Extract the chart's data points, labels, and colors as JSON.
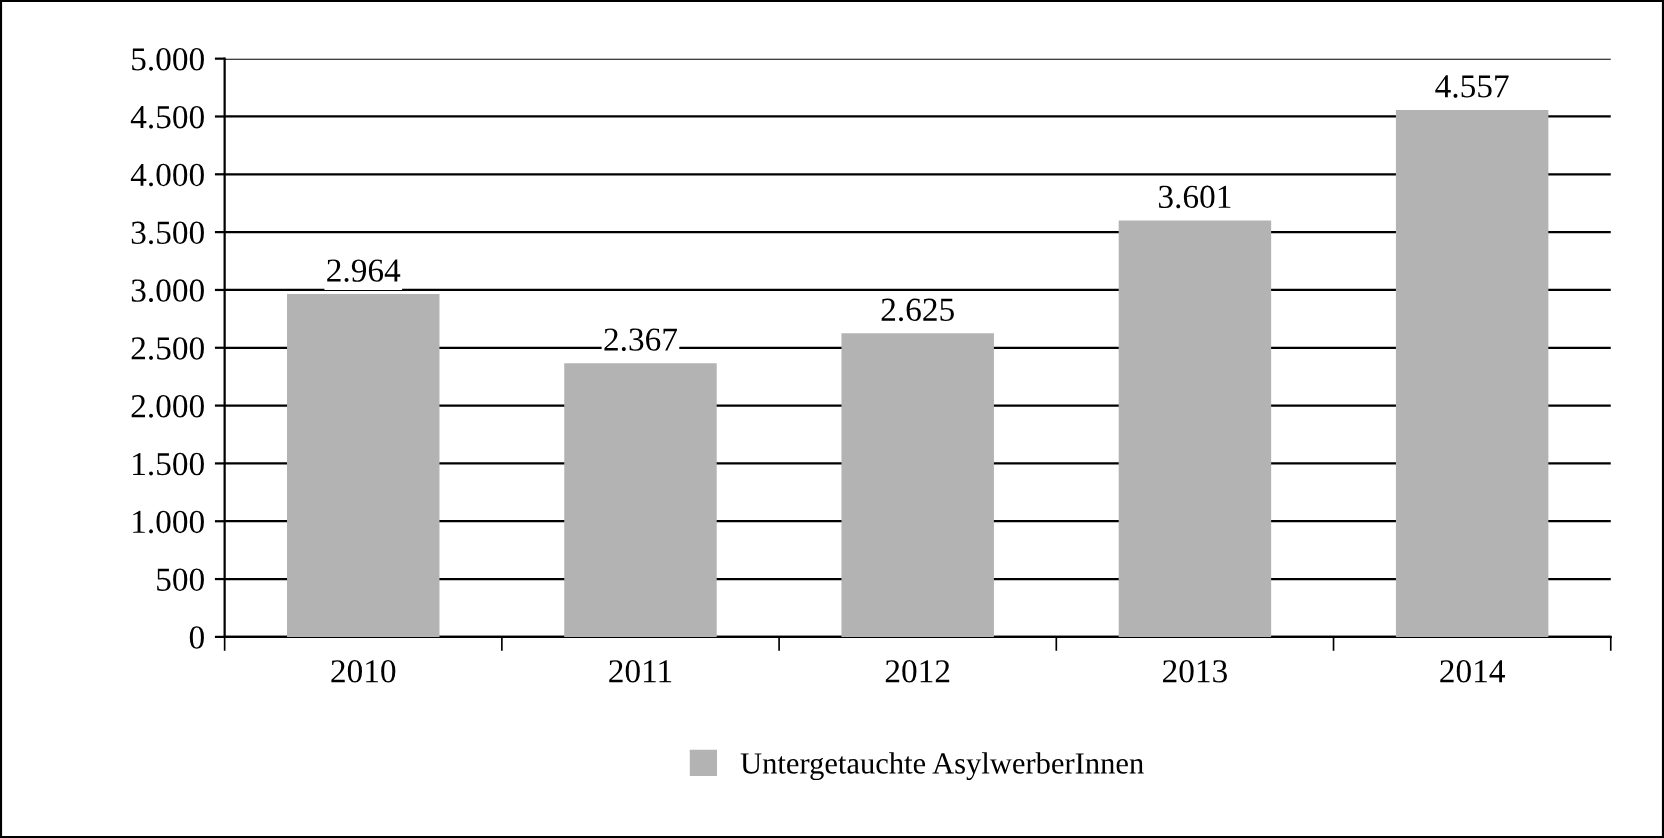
{
  "chart_data": {
    "type": "bar",
    "categories": [
      "2010",
      "2011",
      "2012",
      "2013",
      "2014"
    ],
    "series": [
      {
        "name": "Untergetauchte AsylwerberInnen",
        "color": "#b3b3b3",
        "values": [
          2964,
          2367,
          2625,
          3601,
          4557
        ],
        "value_labels": [
          "2.964",
          "2.367",
          "2.625",
          "3.601",
          "4.557"
        ]
      }
    ],
    "ylim": [
      0,
      5000
    ],
    "yticks": [
      0,
      500,
      {
        "value": 1000,
        "label": "1.000"
      },
      {
        "value": 1500,
        "label": "1.500"
      },
      {
        "value": 2000,
        "label": "2.000"
      },
      {
        "value": 2500,
        "label": "2.500"
      },
      {
        "value": 3000,
        "label": "3.000"
      },
      {
        "value": 3500,
        "label": "3.500"
      },
      {
        "value": 4000,
        "label": "4.000"
      },
      {
        "value": 4500,
        "label": "4.500"
      },
      {
        "value": 5000,
        "label": "5.000"
      }
    ],
    "grid": "y",
    "legend": "bottom"
  }
}
